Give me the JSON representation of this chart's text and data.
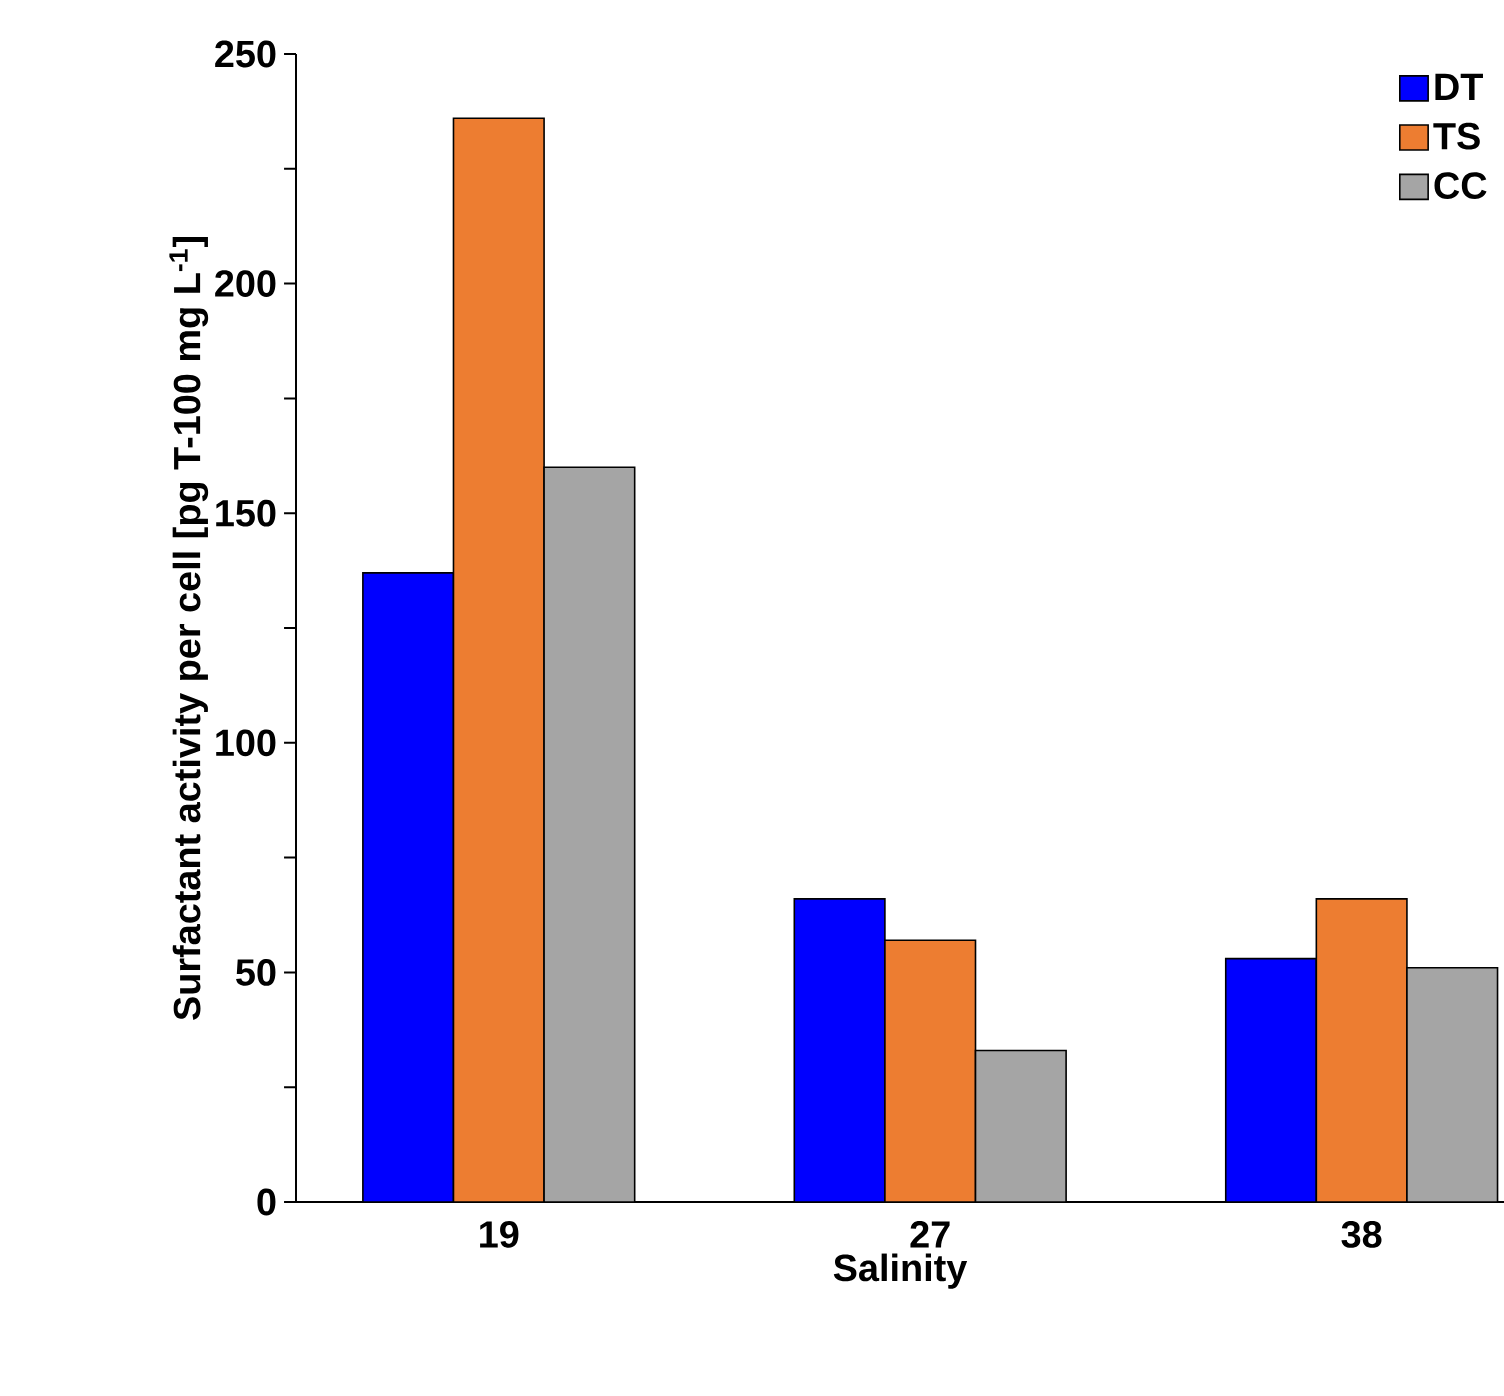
{
  "chart_data": {
    "type": "bar",
    "xlabel": "Salinity",
    "ylabel": "Surfactant activity per cell [pg T-100 mg L$^{-1}$]",
    "categories": [
      "19",
      "27",
      "38"
    ],
    "series": [
      {
        "name": "DT",
        "color": "#0000ff",
        "values": [
          137,
          66,
          53
        ]
      },
      {
        "name": "TS",
        "color": "#ed7d31",
        "values": [
          236,
          57,
          66
        ]
      },
      {
        "name": "CC",
        "color": "#a5a5a5",
        "values": [
          160,
          33,
          51
        ]
      }
    ],
    "ylim": [
      0,
      250
    ],
    "yticks": [
      0,
      {
        "value": 25,
        "label": null
      },
      50,
      {
        "value": 75,
        "label": null
      },
      100,
      {
        "value": 125,
        "label": null
      },
      150,
      {
        "value": 175,
        "label": null
      },
      200,
      {
        "value": 225,
        "label": null
      },
      250
    ],
    "legend": "top right",
    "grid": false
  }
}
